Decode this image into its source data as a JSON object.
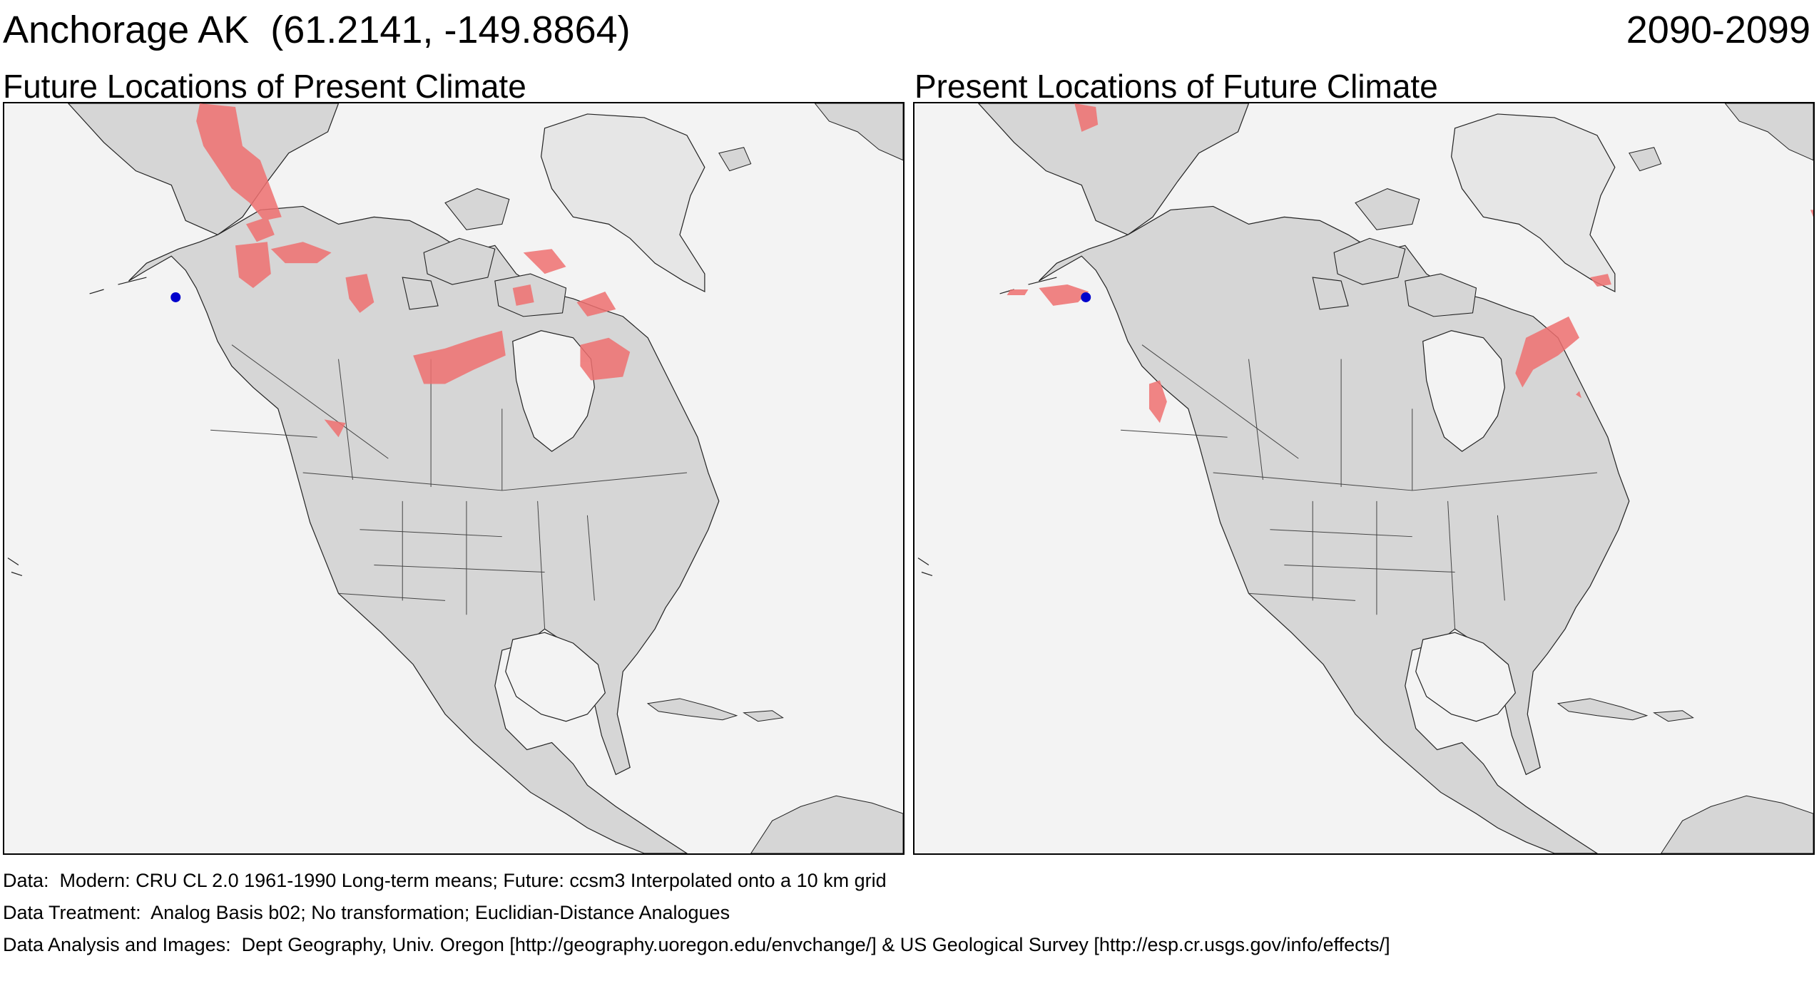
{
  "header": {
    "location": "Anchorage AK  (61.2141, -149.8864)",
    "period": "2090-2099"
  },
  "panels": [
    {
      "title": "Future Locations of Present Climate"
    },
    {
      "title": "Present Locations of Future Climate"
    }
  ],
  "footer": {
    "data": "Data:  Modern: CRU CL 2.0 1961-1990 Long-term means; Future: ccsm3 Interpolated onto a 10 km grid",
    "treatment": "Data Treatment:  Analog Basis b02; No transformation; Euclidian-Distance Analogues",
    "analysis": "Data Analysis and Images:  Dept Geography, Univ. Oregon [http://geography.uoregon.edu/envchange/] & US Geological Survey [http://esp.cr.usgs.gov/info/effects/]"
  },
  "colors": {
    "land": "#d6d6d6",
    "water": "#f3f3f3",
    "analog_region": "#ef7070",
    "site_marker": "#0000cc"
  },
  "icons": [
    "location-dot-icon"
  ]
}
